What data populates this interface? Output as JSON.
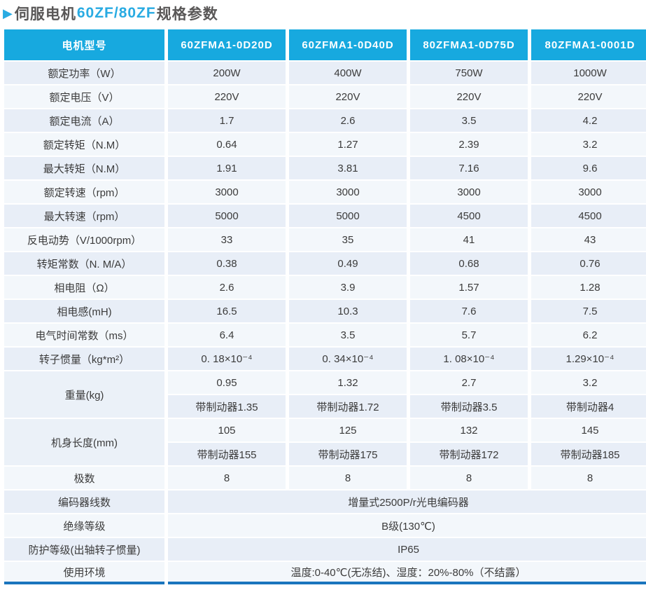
{
  "title": {
    "arrow": "▶",
    "part1": "伺服电机",
    "accent": "60ZF/80ZF",
    "part2": "规格参数"
  },
  "colors": {
    "accent": "#29abe2",
    "header_bg": "#17a9df",
    "row_dark": "#e8eef7",
    "row_light": "#f3f7fb",
    "merged_bg": "#ebf1f8",
    "bottom_rule": "#1a75bd",
    "title_text": "#595757",
    "cell_text": "#3b3b3b"
  },
  "table": {
    "header": [
      "电机型号",
      "60ZFMA1-0D20D",
      "60ZFMA1-0D40D",
      "80ZFMA1-0D75D",
      "80ZFMA1-0001D"
    ],
    "rows": [
      {
        "label": "额定功率（W）",
        "values": [
          "200W",
          "400W",
          "750W",
          "1000W"
        ]
      },
      {
        "label": "额定电压（V）",
        "values": [
          "220V",
          "220V",
          "220V",
          "220V"
        ]
      },
      {
        "label": "额定电流（A）",
        "values": [
          "1.7",
          "2.6",
          "3.5",
          "4.2"
        ]
      },
      {
        "label": "额定转矩（N.M）",
        "values": [
          "0.64",
          "1.27",
          "2.39",
          "3.2"
        ]
      },
      {
        "label": "最大转矩（N.M）",
        "values": [
          "1.91",
          "3.81",
          "7.16",
          "9.6"
        ]
      },
      {
        "label": "额定转速（rpm）",
        "values": [
          "3000",
          "3000",
          "3000",
          "3000"
        ]
      },
      {
        "label": "最大转速（rpm）",
        "values": [
          "5000",
          "5000",
          "4500",
          "4500"
        ]
      },
      {
        "label": "反电动势（V/1000rpm）",
        "values": [
          "33",
          "35",
          "41",
          "43"
        ]
      },
      {
        "label": "转矩常数（N. M/A）",
        "values": [
          "0.38",
          "0.49",
          "0.68",
          "0.76"
        ]
      },
      {
        "label": "相电阻（Ω）",
        "values": [
          "2.6",
          "3.9",
          "1.57",
          "1.28"
        ]
      },
      {
        "label": "相电感(mH)",
        "values": [
          "16.5",
          "10.3",
          "7.6",
          "7.5"
        ]
      },
      {
        "label": "电气时间常数（ms）",
        "values": [
          "6.4",
          "3.5",
          "5.7",
          "6.2"
        ]
      },
      {
        "label": "转子惯量（kg*m²）",
        "values": [
          "0. 18×10⁻⁴",
          "0. 34×10⁻⁴",
          "1. 08×10⁻⁴",
          "1.29×10⁻⁴"
        ]
      },
      {
        "label": "重量(kg)",
        "labelRowspan": 2,
        "values": [
          "0.95",
          "1.32",
          "2.7",
          "3.2"
        ]
      },
      {
        "continuation": true,
        "values": [
          "带制动器1.35",
          "带制动器1.72",
          "带制动器3.5",
          "带制动器4"
        ]
      },
      {
        "label": "机身长度(mm)",
        "labelRowspan": 2,
        "values": [
          "105",
          "125",
          "132",
          "145"
        ]
      },
      {
        "continuation": true,
        "values": [
          "带制动器155",
          "带制动器175",
          "带制动器172",
          "带制动器185"
        ]
      },
      {
        "label": "极数",
        "values": [
          "8",
          "8",
          "8",
          "8"
        ]
      },
      {
        "label": "编码器线数",
        "span": "增量式2500P/r光电编码器"
      },
      {
        "label": "绝缘等级",
        "span": "B级(130℃)"
      },
      {
        "label": "防护等级(出轴转子惯量)",
        "span": "IP65"
      },
      {
        "label": "使用环境",
        "span": "温度:0-40℃(无冻结)、湿度：20%-80%（不结露）"
      }
    ]
  }
}
